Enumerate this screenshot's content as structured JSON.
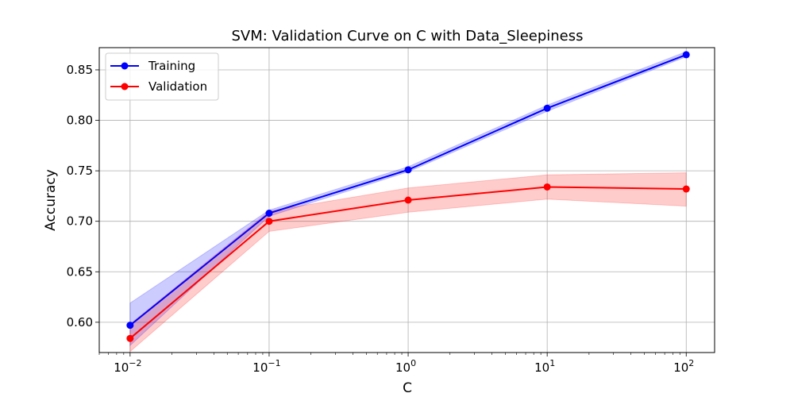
{
  "chart_data": {
    "type": "line",
    "title": "SVM: Validation Curve on C with Data_Sleepiness",
    "xlabel": "C",
    "ylabel": "Accuracy",
    "xscale": "log",
    "xlim": [
      0.006,
      160
    ],
    "ylim": [
      0.57,
      0.872
    ],
    "x": [
      0.01,
      0.1,
      1,
      10,
      100
    ],
    "x_tick_bases": [
      "10",
      "10",
      "10",
      "10",
      "10"
    ],
    "x_tick_exponents": [
      "−2",
      "−1",
      "0",
      "1",
      "2"
    ],
    "y_ticks": [
      "0.60",
      "0.65",
      "0.70",
      "0.75",
      "0.80",
      "0.85"
    ],
    "y_tick_values": [
      0.6,
      0.65,
      0.7,
      0.75,
      0.8,
      0.85
    ],
    "grid": true,
    "legend_position": "upper-left",
    "series": [
      {
        "name": "Training",
        "color": "#0000ff",
        "band_color": "#0000ff",
        "values": [
          0.597,
          0.708,
          0.751,
          0.812,
          0.865
        ],
        "lower": [
          0.577,
          0.705,
          0.749,
          0.809,
          0.863
        ],
        "upper": [
          0.619,
          0.711,
          0.754,
          0.815,
          0.868
        ]
      },
      {
        "name": "Validation",
        "color": "#ff0000",
        "band_color": "#ff0000",
        "values": [
          0.584,
          0.7,
          0.721,
          0.734,
          0.732
        ],
        "lower": [
          0.571,
          0.69,
          0.709,
          0.722,
          0.715
        ],
        "upper": [
          0.598,
          0.71,
          0.733,
          0.746,
          0.748
        ]
      }
    ]
  }
}
